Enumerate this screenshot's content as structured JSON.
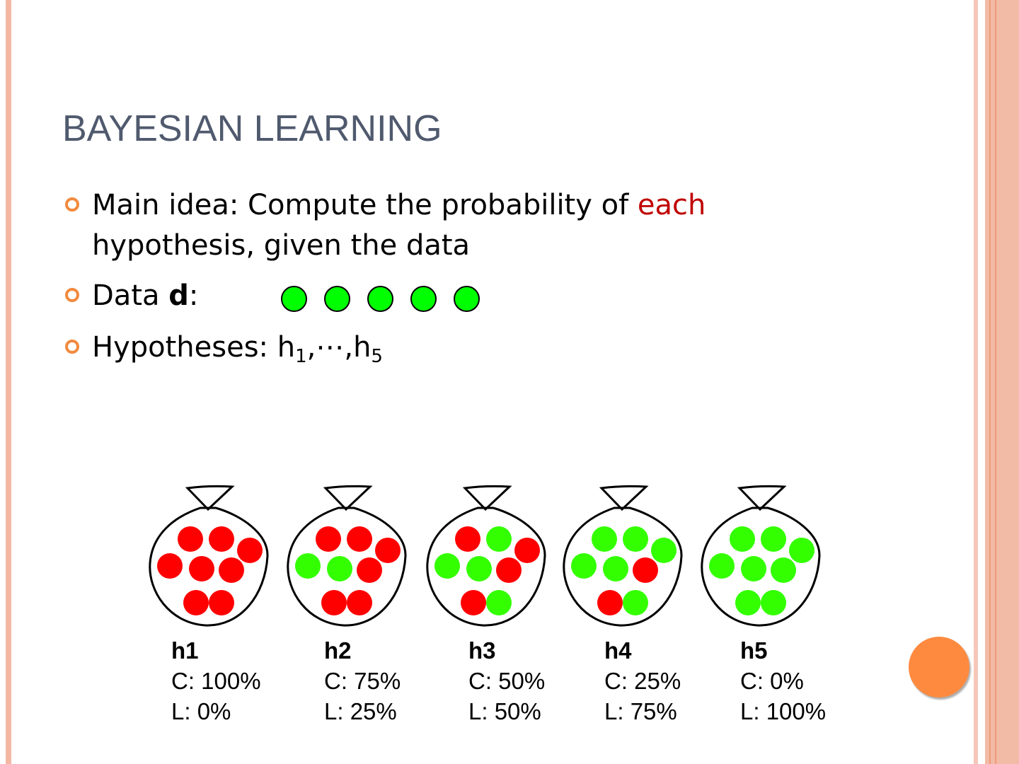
{
  "slide": {
    "title": "BAYESIAN LEARNING"
  },
  "bullets": [
    {
      "text_before": "Main idea: Compute the probability of ",
      "highlight": "each",
      "text_after": "hypothesis, given the data"
    },
    {
      "label": "Data ",
      "bold": "d",
      "colon": ":",
      "ball_count": 5,
      "ball_color": "#00ff00"
    },
    {
      "label": "Hypotheses: h",
      "sub1": "1",
      "middle": ",⋯,h",
      "sub2": "5"
    }
  ],
  "hypotheses": [
    {
      "name": "h1",
      "cherry": "C: 100%",
      "lime": "L: 0%"
    },
    {
      "name": "h2",
      "cherry": "C: 75%",
      "lime": "L: 25%"
    },
    {
      "name": "h3",
      "cherry": "C: 50%",
      "lime": "L: 50%"
    },
    {
      "name": "h4",
      "cherry": "C: 25%",
      "lime": "L: 75%"
    },
    {
      "name": "h5",
      "cherry": "C: 0%",
      "lime": "L: 100%"
    }
  ],
  "colors": {
    "cherry": "#ff0000",
    "lime": "#33ff00",
    "accent": "#f28a3e",
    "title": "#505a6e",
    "highlight": "#c00000"
  }
}
